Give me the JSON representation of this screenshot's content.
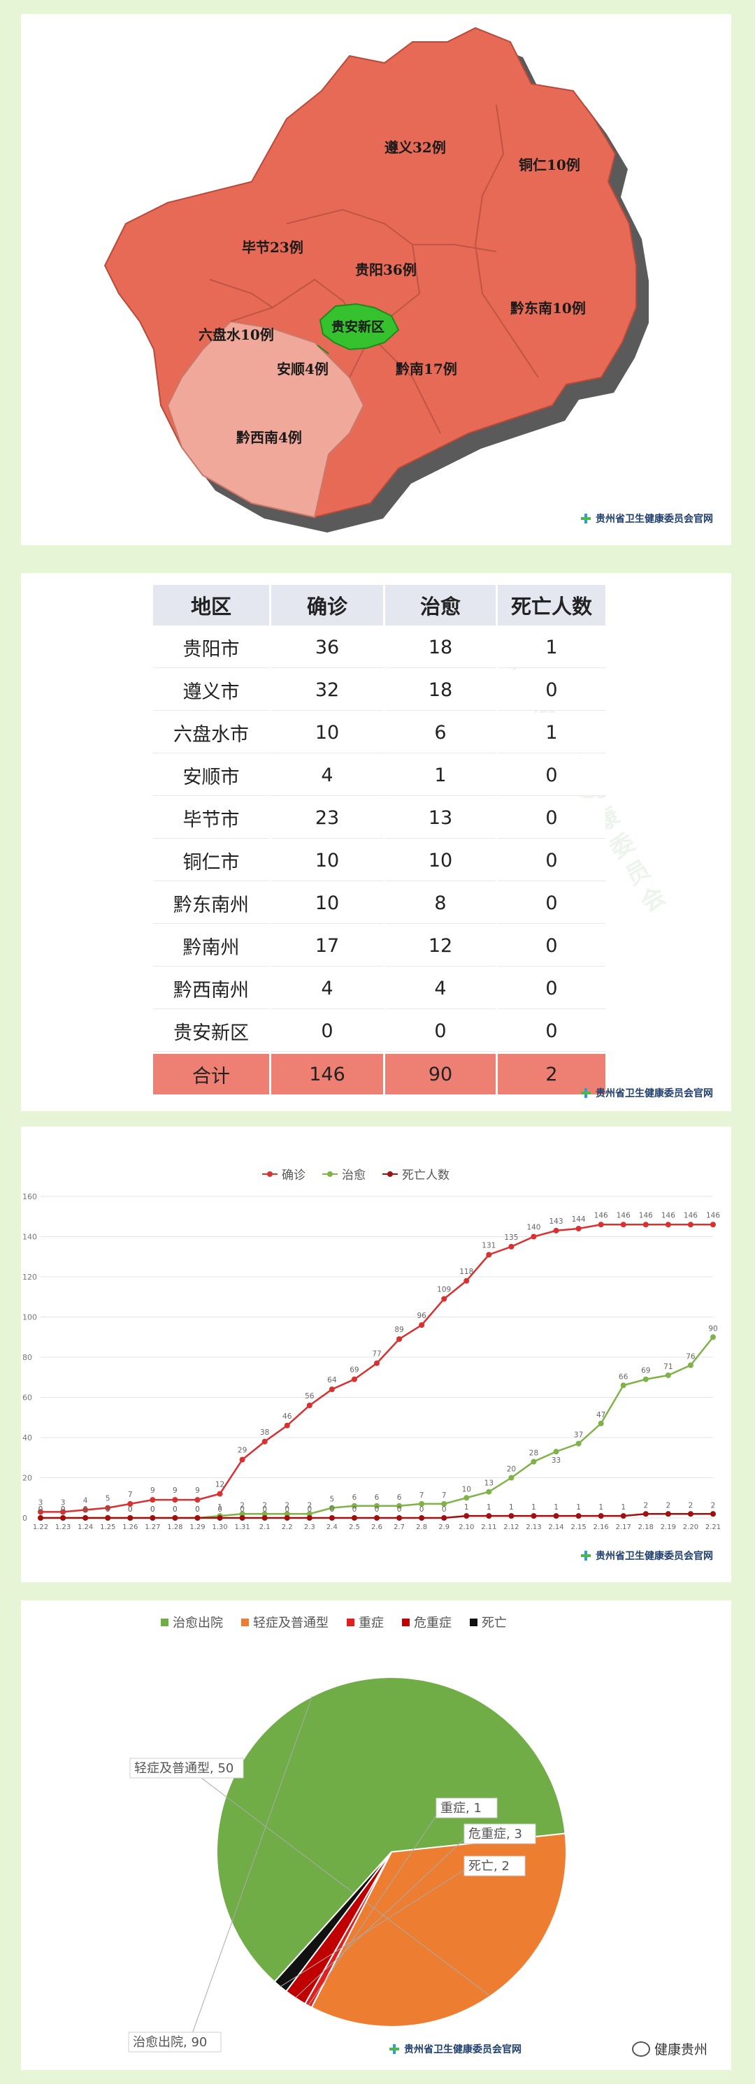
{
  "map": {
    "labels": {
      "zunyi": "遵义32例",
      "tongren": "铜仁10例",
      "bijie": "毕节23例",
      "guiyang": "贵阳36例",
      "guian": "贵安新区",
      "liupanshui": "六盘水10例",
      "qiandongnan": "黔东南10例",
      "anshun": "安顺4例",
      "qiannan": "黔南17例",
      "qianxinan": "黔西南4例"
    },
    "colors": {
      "main": "#e66a55",
      "light": "#f0a89a",
      "guian": "#35c22e",
      "shadow": "#555555"
    }
  },
  "credit": "贵州省卫生健康委员会官网",
  "table": {
    "headers": [
      "地区",
      "确诊",
      "治愈",
      "死亡人数"
    ],
    "rows": [
      [
        "贵阳市",
        "36",
        "18",
        "1"
      ],
      [
        "遵义市",
        "32",
        "18",
        "0"
      ],
      [
        "六盘水市",
        "10",
        "6",
        "1"
      ],
      [
        "安顺市",
        "4",
        "1",
        "0"
      ],
      [
        "毕节市",
        "23",
        "13",
        "0"
      ],
      [
        "铜仁市",
        "10",
        "10",
        "0"
      ],
      [
        "黔东南州",
        "10",
        "8",
        "0"
      ],
      [
        "黔南州",
        "17",
        "12",
        "0"
      ],
      [
        "黔西南州",
        "4",
        "4",
        "0"
      ],
      [
        "贵安新区",
        "0",
        "0",
        "0"
      ]
    ],
    "total": [
      "合计",
      "146",
      "90",
      "2"
    ]
  },
  "chart_data": [
    {
      "type": "line",
      "x": [
        "1.22",
        "1.23",
        "1.24",
        "1.25",
        "1.26",
        "1.27",
        "1.28",
        "1.29",
        "1.30",
        "1.31",
        "2.1",
        "2.2",
        "2.3",
        "2.4",
        "2.5",
        "2.6",
        "2.7",
        "2.8",
        "2.9",
        "2.10",
        "2.11",
        "2.12",
        "2.13",
        "2.14",
        "2.15",
        "2.16",
        "2.17",
        "2.18",
        "2.19",
        "2.20",
        "2.21"
      ],
      "series": [
        {
          "name": "确诊",
          "color": "#d93030",
          "values": [
            3,
            3,
            4,
            5,
            7,
            9,
            9,
            9,
            12,
            29,
            38,
            46,
            56,
            64,
            69,
            77,
            89,
            96,
            109,
            118,
            131,
            135,
            140,
            143,
            144,
            146,
            146,
            146,
            146,
            146,
            146
          ]
        },
        {
          "name": "治愈",
          "color": "#7fb347",
          "values": [
            0,
            0,
            0,
            0,
            0,
            0,
            0,
            0,
            1,
            2,
            2,
            2,
            2,
            5,
            6,
            6,
            6,
            7,
            7,
            10,
            13,
            20,
            28,
            33,
            37,
            47,
            66,
            69,
            71,
            76,
            90
          ]
        },
        {
          "name": "死亡人数",
          "color": "#a01010",
          "values": [
            0,
            0,
            0,
            0,
            0,
            0,
            0,
            0,
            0,
            0,
            0,
            0,
            0,
            0,
            0,
            0,
            0,
            0,
            0,
            1,
            1,
            1,
            1,
            1,
            1,
            1,
            1,
            2,
            2,
            2,
            2
          ]
        }
      ],
      "ylim": [
        0,
        160
      ],
      "yticks": [
        0,
        20,
        40,
        60,
        80,
        100,
        120,
        140,
        160
      ],
      "grid": true,
      "legend": "top"
    },
    {
      "type": "pie",
      "slices": [
        {
          "label": "治愈出院",
          "value": 90,
          "color": "#70ad47",
          "text": "治愈出院, 90"
        },
        {
          "label": "轻症及普通型",
          "value": 50,
          "color": "#ed7d31",
          "text": "轻症及普通型, 50"
        },
        {
          "label": "重症",
          "value": 1,
          "color": "#e02020",
          "text": "重症, 1"
        },
        {
          "label": "危重症",
          "value": 3,
          "color": "#c00000",
          "text": "危重症, 3"
        },
        {
          "label": "死亡",
          "value": 2,
          "color": "#111111",
          "text": "死亡, 2"
        }
      ],
      "legend": "top"
    }
  ],
  "footer_tag": "健康贵州"
}
